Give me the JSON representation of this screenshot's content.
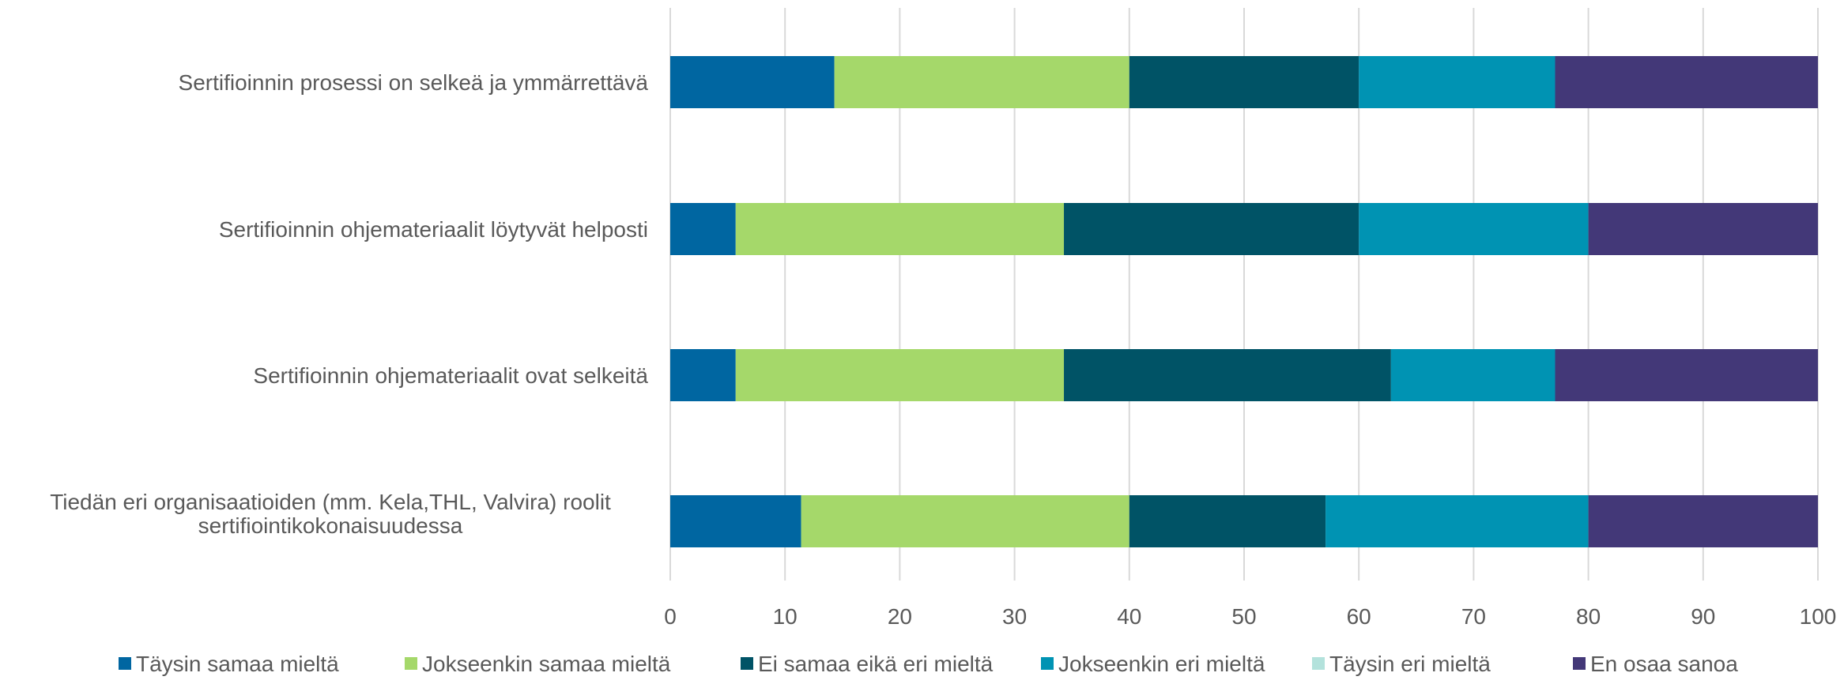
{
  "chart_data": {
    "type": "bar",
    "orientation": "horizontal",
    "stacked": true,
    "categories": [
      [
        "Sertifioinnin prosessi on selkeä ja ymmärrettävä"
      ],
      [
        "Sertifioinnin ohjemateriaalit löytyvät helposti"
      ],
      [
        "Sertifioinnin ohjemateriaalit ovat selkeitä"
      ],
      [
        "Tiedän eri organisaatioiden (mm. Kela,THL, Valvira) roolit",
        "sertifiointikokonaisuudessa"
      ]
    ],
    "series": [
      {
        "name": "Täysin samaa mieltä",
        "color": "#0066a1",
        "values": [
          14.3,
          5.7,
          5.7,
          11.4
        ]
      },
      {
        "name": "Jokseenkin samaa mieltä",
        "color": "#a5d86a",
        "values": [
          25.7,
          28.6,
          28.6,
          28.6
        ]
      },
      {
        "name": "Ei samaa eikä eri mieltä",
        "color": "#005366",
        "values": [
          20.0,
          25.7,
          28.5,
          17.1
        ]
      },
      {
        "name": "Jokseenkin eri mieltä",
        "color": "#0093b3",
        "values": [
          17.1,
          20.0,
          14.3,
          22.9
        ]
      },
      {
        "name": "Täysin eri mieltä",
        "color": "#b3e2dc",
        "values": [
          0,
          0,
          0,
          0
        ]
      },
      {
        "name": "En osaa sanoa",
        "color": "#433878",
        "values": [
          22.9,
          20.0,
          22.9,
          20.0
        ]
      }
    ],
    "xlim": [
      0,
      100
    ],
    "xticks": [
      "0",
      "10",
      "20",
      "30",
      "40",
      "50",
      "60",
      "70",
      "80",
      "90",
      "100"
    ],
    "grid": true,
    "legend_position": "bottom"
  }
}
